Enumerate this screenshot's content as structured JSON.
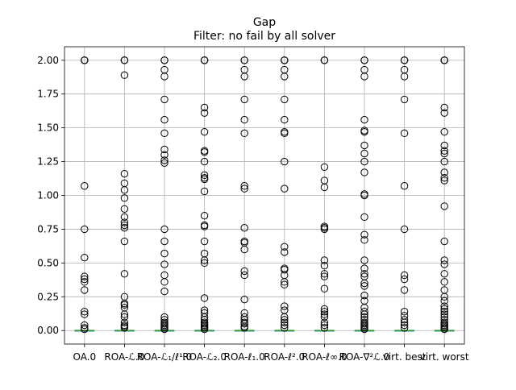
{
  "chart_data": {
    "type": "boxplot",
    "title": "Gap",
    "subtitle": "Filter: no fail by all solver",
    "xlabel": "",
    "ylabel": "",
    "ylim": [
      -0.1,
      2.1
    ],
    "yticks": [
      "0.00",
      "0.25",
      "0.50",
      "0.75",
      "1.00",
      "1.25",
      "1.50",
      "1.75",
      "2.00"
    ],
    "grid": true,
    "categories": [
      "OA.0",
      "ROA-ℒ.0",
      "ROA-ℒ₁/ℓ¹.0",
      "ROA-ℒ₂.0",
      "ROA-ℓ₁.0",
      "ROA-ℓ².0",
      "ROA-ℓ∞.0",
      "ROA-∇²ℒ.0",
      "virt. best",
      "virt. worst"
    ],
    "series": [
      {
        "category": "OA.0",
        "median": 0.0,
        "q1": 0.0,
        "q3": 0.0,
        "whisker_low": 0.0,
        "whisker_high": 0.0,
        "outliers": [
          2.0,
          2.0,
          2.0,
          1.07,
          0.75,
          0.54,
          0.4,
          0.38,
          0.36,
          0.3,
          0.14,
          0.12,
          0.04,
          0.02,
          0.01
        ]
      },
      {
        "category": "ROA-ℒ.0",
        "median": 0.0,
        "q1": 0.0,
        "q3": 0.0,
        "whisker_low": 0.0,
        "whisker_high": 0.0,
        "outliers": [
          2.0,
          2.0,
          2.0,
          1.89,
          1.16,
          1.09,
          1.04,
          0.98,
          0.9,
          0.84,
          0.8,
          0.78,
          0.76,
          0.66,
          0.42,
          0.25,
          0.2,
          0.19,
          0.17,
          0.12,
          0.1,
          0.06,
          0.04,
          0.03,
          0.02
        ]
      },
      {
        "category": "ROA-ℒ₁/ℓ¹.0",
        "median": 0.0,
        "q1": 0.0,
        "q3": 0.0,
        "whisker_low": 0.0,
        "whisker_high": 0.0,
        "outliers": [
          2.0,
          2.0,
          1.93,
          1.88,
          1.71,
          1.56,
          1.46,
          1.34,
          1.3,
          1.26,
          1.24,
          0.75,
          0.66,
          0.57,
          0.49,
          0.41,
          0.36,
          0.29,
          0.1,
          0.08,
          0.06,
          0.05,
          0.04,
          0.03,
          0.02,
          0.01
        ]
      },
      {
        "category": "ROA-ℒ₂.0",
        "median": 0.0,
        "q1": 0.0,
        "q3": 0.0,
        "whisker_low": 0.0,
        "whisker_high": 0.0,
        "outliers": [
          2.0,
          2.0,
          2.0,
          1.65,
          1.61,
          1.47,
          1.33,
          1.32,
          1.25,
          1.15,
          1.13,
          1.12,
          1.03,
          0.85,
          0.78,
          0.77,
          0.66,
          0.57,
          0.52,
          0.5,
          0.24,
          0.15,
          0.13,
          0.1,
          0.08,
          0.06,
          0.05,
          0.04,
          0.03,
          0.02,
          0.01
        ]
      },
      {
        "category": "ROA-ℓ₁.0",
        "median": 0.0,
        "q1": 0.0,
        "q3": 0.0,
        "whisker_low": 0.0,
        "whisker_high": 0.0,
        "outliers": [
          2.0,
          2.0,
          1.93,
          1.88,
          1.71,
          1.56,
          1.46,
          1.07,
          1.05,
          0.76,
          0.66,
          0.65,
          0.6,
          0.44,
          0.41,
          0.23,
          0.13,
          0.1,
          0.08,
          0.06,
          0.05,
          0.03,
          0.02
        ]
      },
      {
        "category": "ROA-ℓ².0",
        "median": 0.0,
        "q1": 0.0,
        "q3": 0.0,
        "whisker_low": 0.0,
        "whisker_high": 0.0,
        "outliers": [
          2.0,
          2.0,
          2.0,
          1.93,
          1.88,
          1.71,
          1.56,
          1.47,
          1.46,
          1.25,
          1.05,
          0.62,
          0.58,
          0.46,
          0.45,
          0.41,
          0.36,
          0.34,
          0.18,
          0.15,
          0.1,
          0.08,
          0.06,
          0.04,
          0.02
        ]
      },
      {
        "category": "ROA-ℓ∞.0",
        "median": 0.0,
        "q1": 0.0,
        "q3": 0.0,
        "whisker_low": 0.0,
        "whisker_high": 0.0,
        "outliers": [
          2.0,
          2.0,
          2.0,
          1.21,
          1.11,
          1.06,
          0.77,
          0.76,
          0.75,
          0.52,
          0.48,
          0.42,
          0.4,
          0.31,
          0.16,
          0.14,
          0.12,
          0.1,
          0.06,
          0.04,
          0.02
        ]
      },
      {
        "category": "ROA-∇²ℒ.0",
        "median": 0.0,
        "q1": 0.0,
        "q3": 0.0,
        "whisker_low": 0.0,
        "whisker_high": 0.0,
        "outliers": [
          2.0,
          2.0,
          1.93,
          1.88,
          1.56,
          1.48,
          1.47,
          1.37,
          1.31,
          1.25,
          1.17,
          1.01,
          1.0,
          0.84,
          0.71,
          0.67,
          0.52,
          0.46,
          0.42,
          0.4,
          0.35,
          0.33,
          0.26,
          0.22,
          0.17,
          0.14,
          0.12,
          0.1,
          0.08,
          0.06,
          0.05,
          0.04,
          0.03,
          0.02,
          0.01
        ]
      },
      {
        "category": "virt. best",
        "median": 0.0,
        "q1": 0.0,
        "q3": 0.0,
        "whisker_low": 0.0,
        "whisker_high": 0.0,
        "outliers": [
          2.0,
          2.0,
          2.0,
          1.93,
          1.88,
          1.71,
          1.46,
          1.07,
          0.75,
          0.41,
          0.38,
          0.3,
          0.14,
          0.11,
          0.08,
          0.06,
          0.04,
          0.02
        ]
      },
      {
        "category": "virt. worst",
        "median": 0.0,
        "q1": 0.0,
        "q3": 0.0,
        "whisker_low": 0.0,
        "whisker_high": 0.0,
        "outliers": [
          2.0,
          2.0,
          2.0,
          1.65,
          1.61,
          1.47,
          1.37,
          1.33,
          1.31,
          1.25,
          1.17,
          1.13,
          1.11,
          0.92,
          0.66,
          0.52,
          0.49,
          0.42,
          0.36,
          0.3,
          0.25,
          0.22,
          0.18,
          0.16,
          0.14,
          0.12,
          0.1,
          0.08,
          0.06,
          0.05,
          0.04,
          0.03,
          0.02,
          0.01
        ]
      }
    ],
    "colors": {
      "axes": "#000000",
      "grid": "#b0b0b0",
      "median": "#2ca02c",
      "outlier": "#000000",
      "background": "#ffffff"
    }
  }
}
